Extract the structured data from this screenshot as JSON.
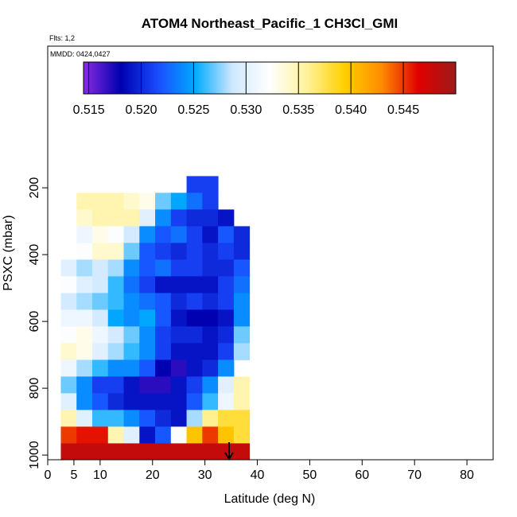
{
  "chart_data": {
    "type": "heatmap",
    "title": "ATOM4 Northeast_Pacific_1 CH3Cl_GMI",
    "annotations": [
      "Flts: 1,2",
      "MMDD: 0424,0427"
    ],
    "x_label": "Latitude (deg N)",
    "y_label": "PSXC (mbar)",
    "xlim": [
      0,
      85
    ],
    "xticks": [
      0,
      5,
      10,
      20,
      30,
      40,
      50,
      60,
      70,
      80
    ],
    "ylim": [
      1014,
      -224
    ],
    "yticks": [
      200,
      400,
      600,
      800,
      1000
    ],
    "x": [
      4,
      7,
      10,
      13,
      16,
      19,
      22,
      25,
      28,
      31,
      34,
      37
    ],
    "y": [
      190,
      240,
      290,
      340,
      390,
      440,
      490,
      540,
      590,
      640,
      690,
      740,
      790,
      840,
      890,
      940,
      990
    ],
    "z": [
      [
        null,
        null,
        null,
        null,
        null,
        null,
        null,
        null,
        0.521,
        0.521,
        null,
        null
      ],
      [
        null,
        0.535,
        0.535,
        0.535,
        0.534,
        0.533,
        0.527,
        0.525,
        0.523,
        0.521,
        null,
        null
      ],
      [
        null,
        0.534,
        0.535,
        0.535,
        0.535,
        0.53,
        0.524,
        0.521,
        0.52,
        0.52,
        0.519,
        null
      ],
      [
        null,
        0.531,
        0.533,
        0.532,
        0.529,
        0.524,
        0.522,
        0.523,
        0.521,
        0.519,
        0.522,
        0.52
      ],
      [
        null,
        0.532,
        0.534,
        0.534,
        0.527,
        0.522,
        0.521,
        0.52,
        0.521,
        0.52,
        0.521,
        0.52
      ],
      [
        0.53,
        0.528,
        0.529,
        0.528,
        0.524,
        0.522,
        0.523,
        0.521,
        0.521,
        0.52,
        0.52,
        0.522
      ],
      [
        0.532,
        0.53,
        0.529,
        0.526,
        0.523,
        0.521,
        0.519,
        0.519,
        0.519,
        0.519,
        0.521,
        0.523
      ],
      [
        0.529,
        0.528,
        0.527,
        0.526,
        0.524,
        0.523,
        0.522,
        0.52,
        0.521,
        0.52,
        0.521,
        0.524
      ],
      [
        0.531,
        0.531,
        0.529,
        0.525,
        0.524,
        0.525,
        0.522,
        0.519,
        0.518,
        0.518,
        0.519,
        0.524
      ],
      [
        0.532,
        0.533,
        0.531,
        0.529,
        0.527,
        0.524,
        0.521,
        0.52,
        0.52,
        0.519,
        0.52,
        0.527
      ],
      [
        0.534,
        0.533,
        0.53,
        0.528,
        0.526,
        0.524,
        0.521,
        0.519,
        0.519,
        0.519,
        0.521,
        0.528
      ],
      [
        0.531,
        0.528,
        0.526,
        0.524,
        0.524,
        0.522,
        0.518,
        0.517,
        0.519,
        0.52,
        0.524,
        null
      ],
      [
        0.527,
        0.524,
        0.521,
        0.521,
        0.519,
        0.517,
        0.517,
        0.519,
        0.521,
        0.524,
        0.53,
        0.535
      ],
      [
        0.53,
        0.524,
        0.522,
        0.52,
        0.519,
        0.519,
        0.519,
        0.519,
        0.522,
        0.526,
        0.531,
        0.535
      ],
      [
        0.535,
        0.53,
        0.526,
        0.526,
        0.524,
        0.522,
        0.52,
        0.519,
        0.528,
        0.536,
        0.538,
        0.538
      ],
      [
        0.545,
        0.546,
        0.546,
        0.535,
        0.53,
        0.519,
        0.522,
        0.532,
        0.54,
        0.545,
        0.54,
        0.538
      ],
      [
        0.548,
        0.548,
        0.548,
        0.548,
        0.548,
        0.548,
        0.548,
        0.548,
        0.548,
        0.548,
        0.548,
        0.548
      ]
    ],
    "clim": [
      0.5145,
      0.55
    ],
    "cticks": [
      {
        "value": 0.515,
        "label": "0.515"
      },
      {
        "value": 0.52,
        "label": "0.520"
      },
      {
        "value": 0.525,
        "label": "0.525"
      },
      {
        "value": 0.53,
        "label": "0.530"
      },
      {
        "value": 0.535,
        "label": "0.535"
      },
      {
        "value": 0.54,
        "label": "0.540"
      },
      {
        "value": 0.545,
        "label": "0.545"
      }
    ],
    "colorscale": [
      "#8a2be2",
      "#0000b0",
      "#1a4cff",
      "#00aaff",
      "#cfe8ff",
      "#ffffff",
      "#fff29a",
      "#ffd000",
      "#ff8c00",
      "#e00000",
      "#9e1a1a"
    ]
  }
}
